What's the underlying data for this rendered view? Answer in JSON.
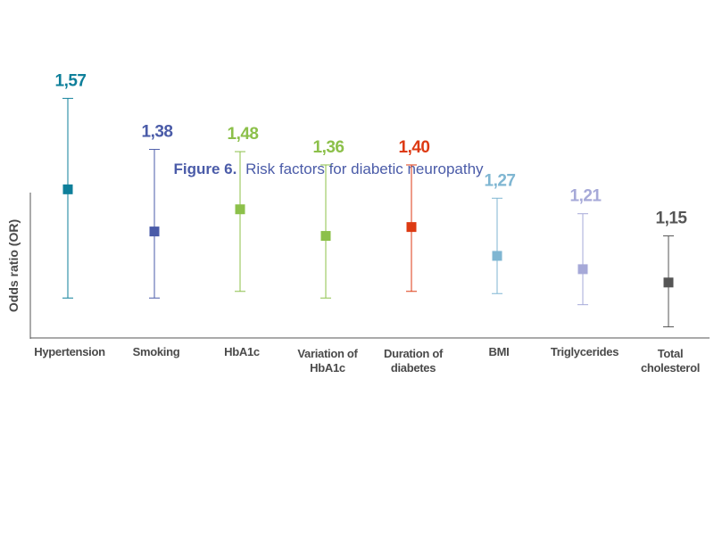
{
  "chart_data": {
    "type": "scatter",
    "title_prefix": "Figure 6.",
    "title": "Risk factors for diabetic neuropathy",
    "ylabel": "Odds ratio (OR)",
    "xlabel": "",
    "ylim": [
      0.9,
      1.7
    ],
    "grid": false,
    "legend": "none",
    "points": [
      {
        "category": "Hypertension",
        "label_lines": [
          "Hypertension"
        ],
        "value": 1.57,
        "value_label": "1,57",
        "ci": [
          1.08,
          1.98
        ],
        "color": "#0e7f9a"
      },
      {
        "category": "Smoking",
        "label_lines": [
          "Smoking"
        ],
        "value": 1.38,
        "value_label": "1,38",
        "ci": [
          1.08,
          1.75
        ],
        "color": "#4a5ba8"
      },
      {
        "category": "HbA1c",
        "label_lines": [
          "HbA1c"
        ],
        "value": 1.48,
        "value_label": "1,48",
        "ci": [
          1.11,
          1.74
        ],
        "color": "#8cc04a"
      },
      {
        "category": "Variation of HbA1c",
        "label_lines": [
          "Variation of",
          "HbA1c"
        ],
        "value": 1.36,
        "value_label": "1,36",
        "ci": [
          1.08,
          1.68
        ],
        "color": "#8cc04a"
      },
      {
        "category": "Duration of diabetes",
        "label_lines": [
          "Duration of",
          "diabetes"
        ],
        "value": 1.4,
        "value_label": "1,40",
        "ci": [
          1.11,
          1.68
        ],
        "color": "#dd3a13"
      },
      {
        "category": "BMI",
        "label_lines": [
          "BMI"
        ],
        "value": 1.27,
        "value_label": "1,27",
        "ci": [
          1.1,
          1.53
        ],
        "color": "#7fb6d2"
      },
      {
        "category": "Triglycerides",
        "label_lines": [
          "Triglycerides"
        ],
        "value": 1.21,
        "value_label": "1,21",
        "ci": [
          1.05,
          1.46
        ],
        "color": "#a6a9d8"
      },
      {
        "category": "Total cholesterol",
        "label_lines": [
          "Total",
          "cholesterol"
        ],
        "value": 1.15,
        "value_label": "1,15",
        "ci": [
          0.95,
          1.36
        ],
        "color": "#555555"
      }
    ]
  }
}
